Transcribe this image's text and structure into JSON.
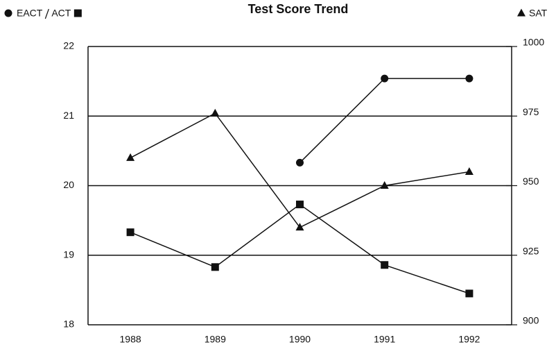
{
  "chart_data": {
    "type": "line",
    "title": "Test Score Trend",
    "categories": [
      "1988",
      "1989",
      "1990",
      "1991",
      "1992"
    ],
    "series": [
      {
        "name": "EACT",
        "color": "#111111",
        "marker": "circle",
        "values": [
          null,
          null,
          20.33,
          21.54,
          21.54
        ]
      },
      {
        "name": "ACT",
        "color": "#111111",
        "marker": "square",
        "values": [
          19.33,
          18.83,
          19.73,
          18.86,
          18.45
        ]
      },
      {
        "name": "SAT",
        "color": "#111111",
        "marker": "triangle",
        "axis": "y2",
        "values": [
          960,
          976,
          935,
          950,
          955
        ]
      }
    ],
    "ylim": [
      18,
      22
    ],
    "yticks": [
      18,
      19,
      20,
      21,
      22
    ],
    "y2lim": [
      900,
      1000
    ],
    "y2ticks": [
      900,
      925,
      950,
      975,
      1000
    ],
    "grid": true
  }
}
